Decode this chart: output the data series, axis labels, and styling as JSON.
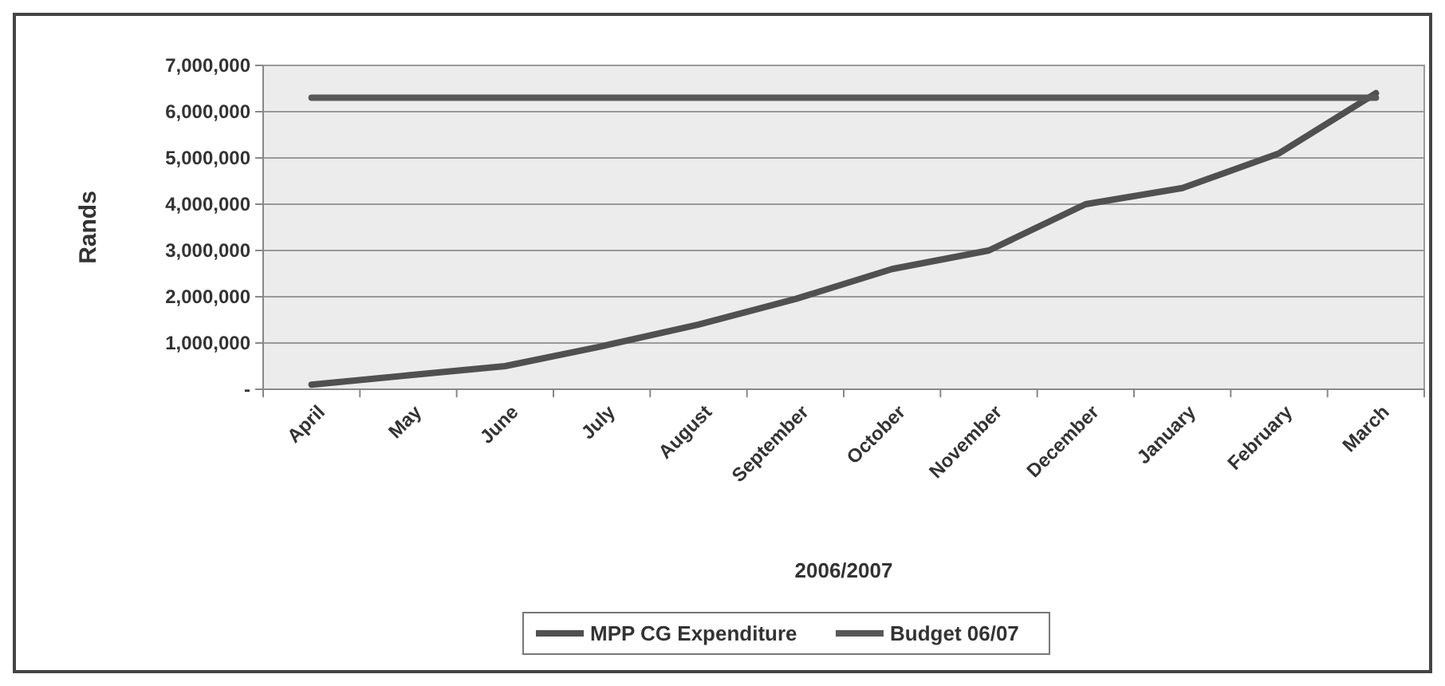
{
  "chart_data": {
    "type": "line",
    "xlabel": "2006/2007",
    "ylabel": "Rands",
    "categories": [
      "April",
      "May",
      "June",
      "July",
      "August",
      "September",
      "October",
      "November",
      "December",
      "January",
      "February",
      "March"
    ],
    "series": [
      {
        "name": "MPP CG Expenditure",
        "color": "#505050",
        "values": [
          100000,
          300000,
          500000,
          930000,
          1400000,
          1950000,
          2600000,
          3000000,
          4000000,
          4350000,
          5100000,
          6400000
        ]
      },
      {
        "name": "Budget 06/07",
        "color": "#585858",
        "values": [
          6300000,
          6300000,
          6300000,
          6300000,
          6300000,
          6300000,
          6300000,
          6300000,
          6300000,
          6300000,
          6300000,
          6300000
        ]
      }
    ],
    "ylim": [
      0,
      7000000
    ],
    "yticks": [
      {
        "value": 0,
        "label": "-"
      },
      {
        "value": 1000000,
        "label": "1,000,000"
      },
      {
        "value": 2000000,
        "label": "2,000,000"
      },
      {
        "value": 3000000,
        "label": "3,000,000"
      },
      {
        "value": 4000000,
        "label": "4,000,000"
      },
      {
        "value": 5000000,
        "label": "5,000,000"
      },
      {
        "value": 6000000,
        "label": "6,000,000"
      },
      {
        "value": 7000000,
        "label": "7,000,000"
      }
    ],
    "grid": "y",
    "legend": "bottom",
    "marker": "none",
    "line_style": "solid"
  }
}
